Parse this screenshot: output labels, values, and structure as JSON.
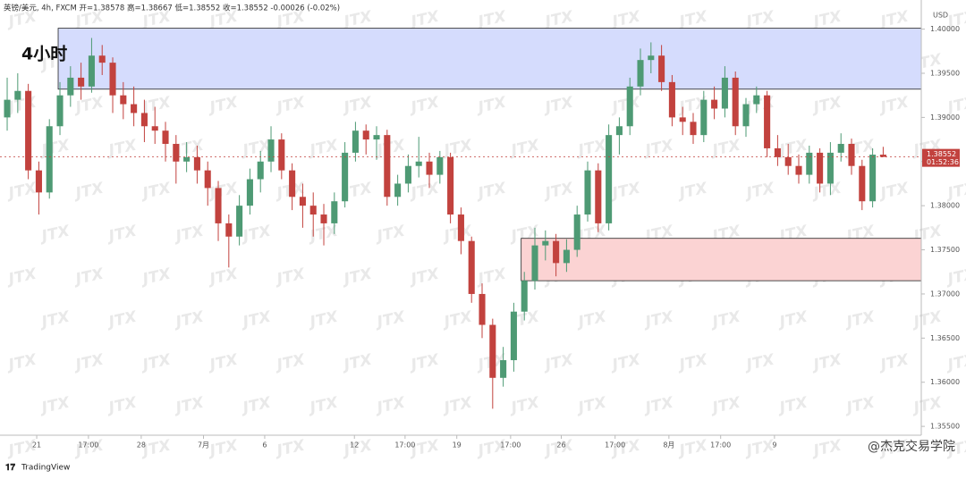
{
  "chart_data": {
    "type": "candlestick",
    "header": "英镑/美元, 4h, FXCM  开=1.38578  高=1.38667  低=1.38552  收=1.38552  -0.00026 (-0.02%)",
    "timeframe_label": "4小时",
    "currency": "USD",
    "watermark": "JTX",
    "brand": "TradingView",
    "credit": "@杰克交易学院",
    "up_color": "#4e9a74",
    "down_color": "#c2423e",
    "ylim": [
      1.354,
      1.4033
    ],
    "xlim": [
      -0.68,
      86.61
    ],
    "yticks": [
      {
        "value": 1.4,
        "label": "1.40000"
      },
      {
        "value": 1.395,
        "label": "1.39500"
      },
      {
        "value": 1.39,
        "label": "1.39000"
      },
      {
        "value": 1.385,
        "label": "1.38500"
      },
      {
        "value": 1.38,
        "label": "1.38000"
      },
      {
        "value": 1.375,
        "label": "1.37500"
      },
      {
        "value": 1.37,
        "label": "1.37000"
      },
      {
        "value": 1.365,
        "label": "1.36500"
      },
      {
        "value": 1.36,
        "label": "1.36000"
      },
      {
        "value": 1.355,
        "label": "1.35500"
      }
    ],
    "xticks": [
      {
        "value": 2.8,
        "label": "21"
      },
      {
        "value": 7.7,
        "label": "17:00"
      },
      {
        "value": 12.7,
        "label": "28"
      },
      {
        "value": 18.6,
        "label": "7月"
      },
      {
        "value": 24.4,
        "label": "6"
      },
      {
        "value": 32.9,
        "label": "12"
      },
      {
        "value": 37.7,
        "label": "17:00"
      },
      {
        "value": 42.6,
        "label": "19"
      },
      {
        "value": 47.7,
        "label": "17:00"
      },
      {
        "value": 52.5,
        "label": "26"
      },
      {
        "value": 57.6,
        "label": "17:00"
      },
      {
        "value": 62.7,
        "label": "8月"
      },
      {
        "value": 67.6,
        "label": "17:00"
      },
      {
        "value": 72.7,
        "label": "9"
      }
    ],
    "zones": [
      {
        "x0": 4.83,
        "top": 1.4001,
        "bottom": 1.3932,
        "color": "#d5dcfd"
      },
      {
        "x0": 48.7,
        "top": 1.3763,
        "bottom": 1.3715,
        "color": "#fbd3d3"
      }
    ],
    "last_price": {
      "value": 1.38552,
      "label": "1.38552"
    },
    "countdown": "01:52:36",
    "ohlc": [
      [
        1.39,
        1.3945,
        1.3885,
        1.392
      ],
      [
        1.392,
        1.395,
        1.3905,
        1.393
      ],
      [
        1.393,
        1.3938,
        1.383,
        1.384
      ],
      [
        1.384,
        1.385,
        1.379,
        1.3815
      ],
      [
        1.3815,
        1.3898,
        1.3808,
        1.389
      ],
      [
        1.389,
        1.394,
        1.388,
        1.3925
      ],
      [
        1.3925,
        1.3958,
        1.3912,
        1.3945
      ],
      [
        1.3945,
        1.3962,
        1.392,
        1.3935
      ],
      [
        1.3935,
        1.399,
        1.3928,
        1.397
      ],
      [
        1.397,
        1.3982,
        1.3948,
        1.3962
      ],
      [
        1.3962,
        1.3968,
        1.3905,
        1.3925
      ],
      [
        1.3925,
        1.394,
        1.3898,
        1.3915
      ],
      [
        1.3915,
        1.3935,
        1.389,
        1.3905
      ],
      [
        1.3905,
        1.392,
        1.3872,
        1.389
      ],
      [
        1.389,
        1.3912,
        1.387,
        1.3885
      ],
      [
        1.3885,
        1.3895,
        1.385,
        1.387
      ],
      [
        1.387,
        1.388,
        1.3825,
        1.385
      ],
      [
        1.385,
        1.3872,
        1.3838,
        1.3855
      ],
      [
        1.3855,
        1.3868,
        1.3825,
        1.384
      ],
      [
        1.384,
        1.385,
        1.38,
        1.382
      ],
      [
        1.382,
        1.3828,
        1.376,
        1.378
      ],
      [
        1.378,
        1.379,
        1.373,
        1.3765
      ],
      [
        1.3765,
        1.3812,
        1.3755,
        1.38
      ],
      [
        1.38,
        1.3842,
        1.379,
        1.383
      ],
      [
        1.383,
        1.3862,
        1.3815,
        1.385
      ],
      [
        1.385,
        1.389,
        1.3838,
        1.3875
      ],
      [
        1.3875,
        1.3882,
        1.383,
        1.384
      ],
      [
        1.384,
        1.3848,
        1.3795,
        1.381
      ],
      [
        1.381,
        1.3825,
        1.3775,
        1.38
      ],
      [
        1.38,
        1.3815,
        1.3765,
        1.379
      ],
      [
        1.379,
        1.3802,
        1.3755,
        1.378
      ],
      [
        1.378,
        1.3815,
        1.3768,
        1.3805
      ],
      [
        1.3805,
        1.3872,
        1.3798,
        1.386
      ],
      [
        1.386,
        1.3895,
        1.385,
        1.3885
      ],
      [
        1.3885,
        1.3892,
        1.3858,
        1.3875
      ],
      [
        1.3875,
        1.389,
        1.3852,
        1.388
      ],
      [
        1.388,
        1.3886,
        1.38,
        1.381
      ],
      [
        1.381,
        1.3835,
        1.38,
        1.3825
      ],
      [
        1.3825,
        1.3858,
        1.3815,
        1.3845
      ],
      [
        1.3845,
        1.3878,
        1.3832,
        1.385
      ],
      [
        1.385,
        1.386,
        1.382,
        1.3835
      ],
      [
        1.3835,
        1.3862,
        1.3825,
        1.3855
      ],
      [
        1.3855,
        1.386,
        1.378,
        1.379
      ],
      [
        1.379,
        1.3798,
        1.3745,
        1.376
      ],
      [
        1.376,
        1.3765,
        1.369,
        1.37
      ],
      [
        1.37,
        1.3712,
        1.365,
        1.3665
      ],
      [
        1.3665,
        1.3672,
        1.357,
        1.3605
      ],
      [
        1.3605,
        1.364,
        1.3595,
        1.3625
      ],
      [
        1.3625,
        1.369,
        1.3612,
        1.368
      ],
      [
        1.368,
        1.3725,
        1.367,
        1.3715
      ],
      [
        1.3715,
        1.3775,
        1.3705,
        1.3755
      ],
      [
        1.3755,
        1.3772,
        1.3738,
        1.376
      ],
      [
        1.376,
        1.3768,
        1.372,
        1.3735
      ],
      [
        1.3735,
        1.3762,
        1.3725,
        1.375
      ],
      [
        1.375,
        1.38,
        1.3742,
        1.379
      ],
      [
        1.379,
        1.385,
        1.3782,
        1.384
      ],
      [
        1.384,
        1.3848,
        1.377,
        1.378
      ],
      [
        1.378,
        1.3892,
        1.3772,
        1.388
      ],
      [
        1.388,
        1.39,
        1.3858,
        1.389
      ],
      [
        1.389,
        1.3945,
        1.388,
        1.3935
      ],
      [
        1.3935,
        1.3978,
        1.3925,
        1.3965
      ],
      [
        1.3965,
        1.3985,
        1.395,
        1.397
      ],
      [
        1.397,
        1.3982,
        1.393,
        1.394
      ],
      [
        1.394,
        1.3948,
        1.389,
        1.39
      ],
      [
        1.39,
        1.3912,
        1.388,
        1.3895
      ],
      [
        1.3895,
        1.3905,
        1.387,
        1.388
      ],
      [
        1.388,
        1.393,
        1.3872,
        1.392
      ],
      [
        1.392,
        1.3935,
        1.3898,
        1.391
      ],
      [
        1.391,
        1.3958,
        1.39,
        1.3945
      ],
      [
        1.3945,
        1.3952,
        1.388,
        1.389
      ],
      [
        1.389,
        1.3922,
        1.3878,
        1.3915
      ],
      [
        1.3915,
        1.3935,
        1.3905,
        1.3925
      ],
      [
        1.3925,
        1.393,
        1.3855,
        1.3865
      ],
      [
        1.3865,
        1.388,
        1.3845,
        1.3855
      ],
      [
        1.3855,
        1.387,
        1.3835,
        1.3845
      ],
      [
        1.3845,
        1.3858,
        1.3825,
        1.3835
      ],
      [
        1.3835,
        1.3868,
        1.3825,
        1.386
      ],
      [
        1.386,
        1.3865,
        1.3815,
        1.3825
      ],
      [
        1.3825,
        1.3872,
        1.3812,
        1.386
      ],
      [
        1.386,
        1.3882,
        1.385,
        1.387
      ],
      [
        1.387,
        1.3876,
        1.3835,
        1.3845
      ],
      [
        1.3845,
        1.3852,
        1.3795,
        1.3805
      ],
      [
        1.3805,
        1.3865,
        1.3798,
        1.38578
      ],
      [
        1.38578,
        1.38667,
        1.38552,
        1.38552
      ]
    ]
  }
}
